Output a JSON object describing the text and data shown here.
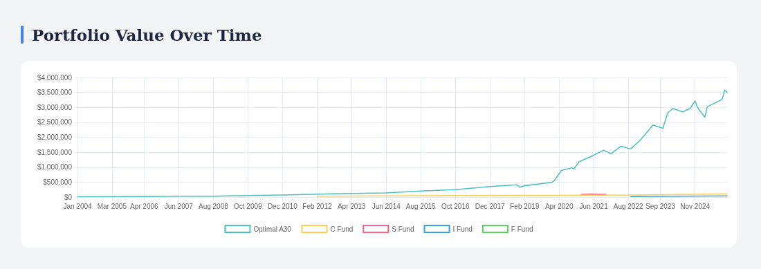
{
  "chart_data": {
    "type": "line",
    "title": "Portfolio Value Over Time",
    "xlim": [
      "2004-01",
      "2025-12"
    ],
    "xticks": [
      {
        "value": "2004-01",
        "label": "Jan 2004"
      },
      {
        "value": "2005-03",
        "label": "Mar 2005"
      },
      {
        "value": "2006-04",
        "label": "Apr 2006"
      },
      {
        "value": "2007-06",
        "label": "Jun 2007"
      },
      {
        "value": "2008-08",
        "label": "Aug 2008"
      },
      {
        "value": "2009-10",
        "label": "Oct 2009"
      },
      {
        "value": "2010-12",
        "label": "Dec 2010"
      },
      {
        "value": "2012-02",
        "label": "Feb 2012"
      },
      {
        "value": "2013-04",
        "label": "Apr 2013"
      },
      {
        "value": "2014-06",
        "label": "Jun 2014"
      },
      {
        "value": "2015-08",
        "label": "Aug 2015"
      },
      {
        "value": "2016-10",
        "label": "Oct 2016"
      },
      {
        "value": "2017-12",
        "label": "Dec 2017"
      },
      {
        "value": "2019-02",
        "label": "Feb 2019"
      },
      {
        "value": "2020-04",
        "label": "Apr 2020"
      },
      {
        "value": "2021-06",
        "label": "Jun 2021"
      },
      {
        "value": "2022-08",
        "label": "Aug 2022"
      },
      {
        "value": "2023-09",
        "label": "Sep 2023"
      },
      {
        "value": "2024-11",
        "label": "Nov 2024"
      }
    ],
    "ylim": [
      0,
      4000000
    ],
    "yticks": [
      {
        "value": 0,
        "label": "$0"
      },
      {
        "value": 500000,
        "label": "$500,000"
      },
      {
        "value": 1000000,
        "label": "$1,000,000"
      },
      {
        "value": 1500000,
        "label": "$1,500,000"
      },
      {
        "value": 2000000,
        "label": "$2,000,000"
      },
      {
        "value": 2500000,
        "label": "$2,500,000"
      },
      {
        "value": 3000000,
        "label": "$3,000,000"
      },
      {
        "value": 3500000,
        "label": "$3,500,000"
      },
      {
        "value": 4000000,
        "label": "$4,000,000"
      }
    ],
    "grid": true,
    "legend": "bottom",
    "marker": "none",
    "line_style": "solid",
    "series": [
      {
        "name": "Optimal A30",
        "color": "#4bc0c0",
        "x": [
          "2004-01",
          "2006-06",
          "2007-06",
          "2008-08",
          "2009-10",
          "2010-12",
          "2012-02",
          "2013-04",
          "2014-06",
          "2015-08",
          "2016-10",
          "2017-12",
          "2018-11",
          "2018-12",
          "2019-02",
          "2020-01",
          "2020-02",
          "2020-05",
          "2020-09",
          "2020-10",
          "2020-12",
          "2021-06",
          "2021-10",
          "2022-01",
          "2022-05",
          "2022-09",
          "2023-01",
          "2023-06",
          "2023-10",
          "2023-12",
          "2024-02",
          "2024-06",
          "2024-09",
          "2024-11",
          "2024-12",
          "2025-03",
          "2025-04",
          "2025-07",
          "2025-10",
          "2025-11",
          "2025-12"
        ],
        "values": [
          10000,
          20000,
          30000,
          30000,
          50000,
          70000,
          100000,
          120000,
          140000,
          200000,
          250000,
          350000,
          410000,
          330000,
          380000,
          490000,
          550000,
          890000,
          980000,
          940000,
          1180000,
          1400000,
          1570000,
          1450000,
          1700000,
          1610000,
          1920000,
          2410000,
          2300000,
          2820000,
          2960000,
          2850000,
          2960000,
          3220000,
          3000000,
          2670000,
          3020000,
          3140000,
          3270000,
          3580000,
          3500000
        ]
      },
      {
        "name": "C Fund",
        "color": "#ffcd56",
        "x": [
          "2012-02",
          "2016-10",
          "2020-04",
          "2022-09",
          "2025-12"
        ],
        "values": [
          30000,
          50000,
          60000,
          70000,
          110000
        ]
      },
      {
        "name": "S Fund",
        "color": "#ff6384",
        "x": [
          "2021-01",
          "2021-06",
          "2021-11"
        ],
        "values": [
          90000,
          100000,
          90000
        ]
      },
      {
        "name": "I Fund",
        "color": "#36a2eb",
        "x": [
          "2022-09",
          "2025-12"
        ],
        "values": [
          20000,
          40000
        ]
      },
      {
        "name": "F Fund",
        "color": "#5bd35b"
      }
    ]
  }
}
